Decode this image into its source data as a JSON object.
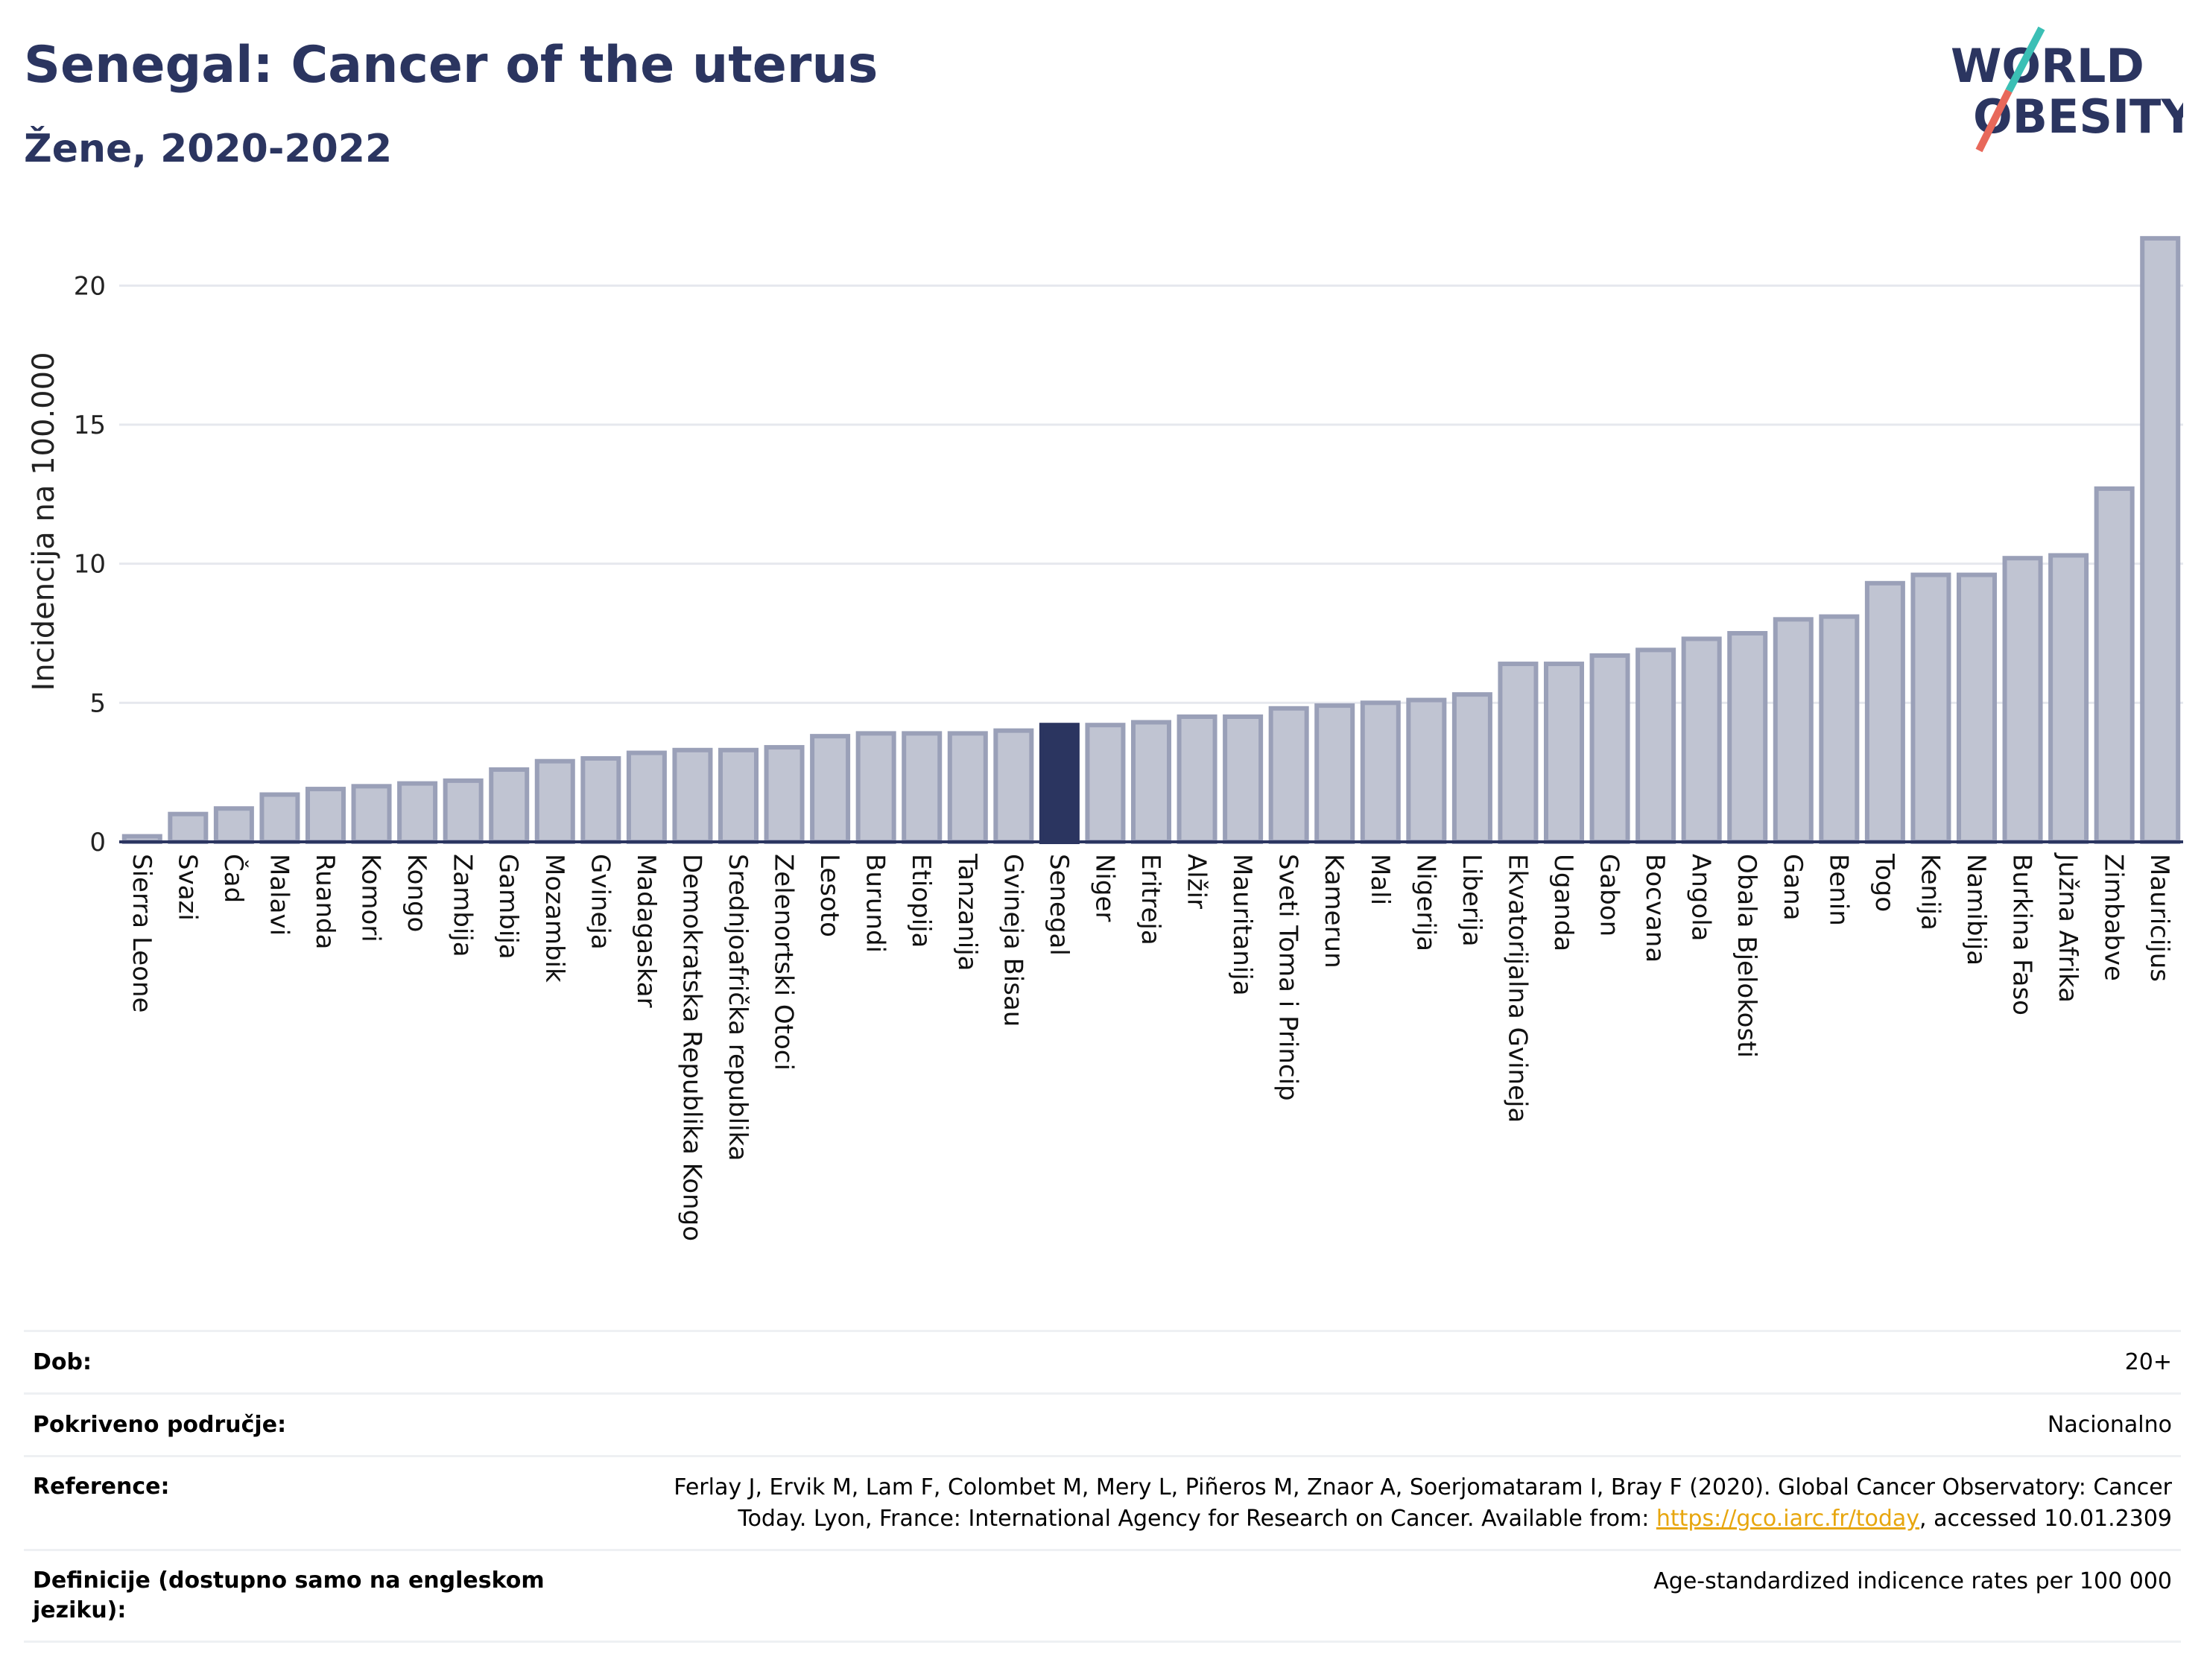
{
  "header": {
    "title": "Senegal: Cancer of the uterus",
    "subtitle": "Žene, 2020-2022"
  },
  "logo": {
    "line1": "WORLD",
    "line2": "OBESITY",
    "accent_colors": [
      "#3bbfb5",
      "#e8685a"
    ]
  },
  "chart_data": {
    "type": "bar",
    "ylabel": "Incidencija na 100.000",
    "ylim": [
      0,
      22.5
    ],
    "yticks": [
      0,
      5,
      10,
      15,
      20
    ],
    "grid": true,
    "highlight": "Senegal",
    "colors": {
      "bar": "#c0c4d2",
      "bar_border": "#9aa0b8",
      "highlight": "#2b3560"
    },
    "categories": [
      "Sierra Leone",
      "Svazi",
      "Čad",
      "Malavi",
      "Ruanda",
      "Komori",
      "Kongo",
      "Zambija",
      "Gambija",
      "Mozambik",
      "Gvineja",
      "Madagaskar",
      "Demokratska Republika Kongo",
      "Srednjoafrička republika",
      "Zelenortski Otoci",
      "Lesoto",
      "Burundi",
      "Etiopija",
      "Tanzanija",
      "Gvineja Bisau",
      "Senegal",
      "Niger",
      "Eritreja",
      "Alžir",
      "Mauritanija",
      "Sveti Toma i Princip",
      "Kamerun",
      "Mali",
      "Nigerija",
      "Liberija",
      "Ekvatorijalna Gvineja",
      "Uganda",
      "Gabon",
      "Bocvana",
      "Angola",
      "Obala Bjelokosti",
      "Gana",
      "Benin",
      "Togo",
      "Kenija",
      "Namibija",
      "Burkina Faso",
      "Južna Afrika",
      "Zimbabve",
      "Mauricijus"
    ],
    "values": [
      0.2,
      1.0,
      1.2,
      1.7,
      1.9,
      2.0,
      2.1,
      2.2,
      2.6,
      2.9,
      3.0,
      3.2,
      3.3,
      3.3,
      3.4,
      3.8,
      3.9,
      3.9,
      3.9,
      4.0,
      4.2,
      4.2,
      4.3,
      4.5,
      4.5,
      4.8,
      4.9,
      5.0,
      5.1,
      5.3,
      6.4,
      6.4,
      6.7,
      6.9,
      7.3,
      7.5,
      8.0,
      8.1,
      9.3,
      9.6,
      9.6,
      10.2,
      10.3,
      12.7,
      21.7
    ]
  },
  "info": {
    "age_label": "Dob:",
    "age_value": "20+",
    "coverage_label": "Pokriveno područje:",
    "coverage_value": "Nacionalno",
    "reference_label": "Reference:",
    "reference_text_1": "Ferlay J, Ervik M, Lam F, Colombet M, Mery L, Piñeros M, Znaor A, Soerjomataram I, Bray F (2020). Global Cancer Observatory: Cancer Today. Lyon, France: International Agency for Research on Cancer. Available from: ",
    "reference_link": "https://gco.iarc.fr/today",
    "reference_text_2": ", accessed 10.01.2309",
    "definitions_label": "Definicije (dostupno samo na engleskom jeziku):",
    "definitions_value": "Age-standardized indicence rates per 100 000"
  }
}
